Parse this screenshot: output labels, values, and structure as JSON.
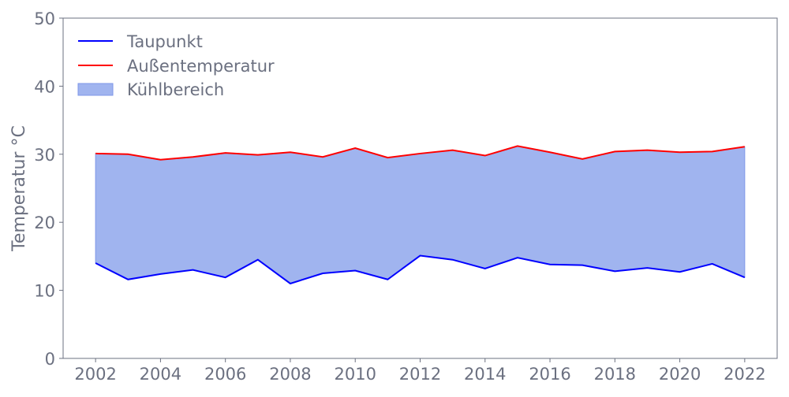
{
  "chart_data": {
    "type": "line",
    "title": "",
    "xlabel": "",
    "ylabel": "Temperatur °C",
    "xlim": [
      2001,
      2023
    ],
    "ylim": [
      0,
      50
    ],
    "xticks": [
      2002,
      2004,
      2006,
      2008,
      2010,
      2012,
      2014,
      2016,
      2018,
      2020,
      2022
    ],
    "yticks": [
      0,
      10,
      20,
      30,
      40,
      50
    ],
    "grid": false,
    "legend_position": "top-left",
    "x": [
      2002,
      2003,
      2004,
      2005,
      2006,
      2007,
      2008,
      2009,
      2010,
      2011,
      2012,
      2013,
      2014,
      2015,
      2016,
      2017,
      2018,
      2019,
      2020,
      2021,
      2022
    ],
    "series": [
      {
        "name": "Taupunkt",
        "color": "#0000ff",
        "values": [
          14.0,
          11.6,
          12.4,
          13.0,
          11.9,
          14.5,
          11.0,
          12.5,
          12.9,
          11.6,
          15.1,
          14.5,
          13.2,
          14.8,
          13.8,
          13.7,
          12.8,
          13.3,
          12.7,
          13.9,
          11.9
        ]
      },
      {
        "name": "Außentemperatur",
        "color": "#ff0000",
        "values": [
          30.1,
          30.0,
          29.2,
          29.6,
          30.2,
          29.9,
          30.3,
          29.6,
          30.9,
          29.5,
          30.1,
          30.6,
          29.8,
          31.2,
          30.3,
          29.3,
          30.4,
          30.6,
          30.3,
          30.4,
          31.1
        ]
      }
    ],
    "fill_between": {
      "name": "Kühlbereich",
      "color": "#4169e1",
      "opacity": 0.5,
      "lower": "Taupunkt",
      "upper": "Außentemperatur"
    }
  }
}
